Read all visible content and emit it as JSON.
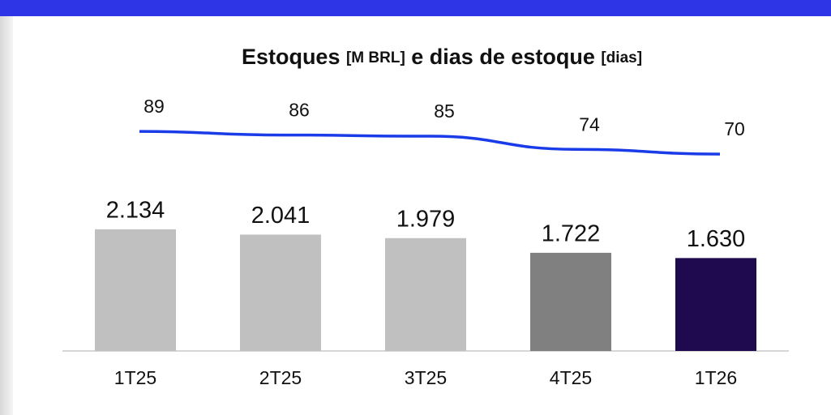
{
  "chart_data": {
    "type": "bar_line",
    "title": "Estoques [M BRL] e dias de estoque [dias]",
    "categories": [
      "1T25",
      "2T25",
      "3T25",
      "4T25",
      "1T26"
    ],
    "series": [
      {
        "name": "Estoques",
        "type": "bar",
        "colors": [
          "#c0c0c0",
          "#c0c0c0",
          "#c0c0c0",
          "#808080",
          "#1f0a4f"
        ],
        "values": [
          2134,
          2041,
          1979,
          1722,
          1630
        ],
        "value_labels": [
          "2.134",
          "2.041",
          "1.979",
          "1.722",
          "1.630"
        ]
      },
      {
        "name": "Dias de estoque",
        "type": "line",
        "axis": "y2",
        "color": "#1a3be8",
        "values": [
          89,
          86,
          85,
          74,
          70
        ]
      }
    ],
    "ylim": [
      0,
      3000
    ],
    "y2lim": [
      0,
      100
    ]
  }
}
